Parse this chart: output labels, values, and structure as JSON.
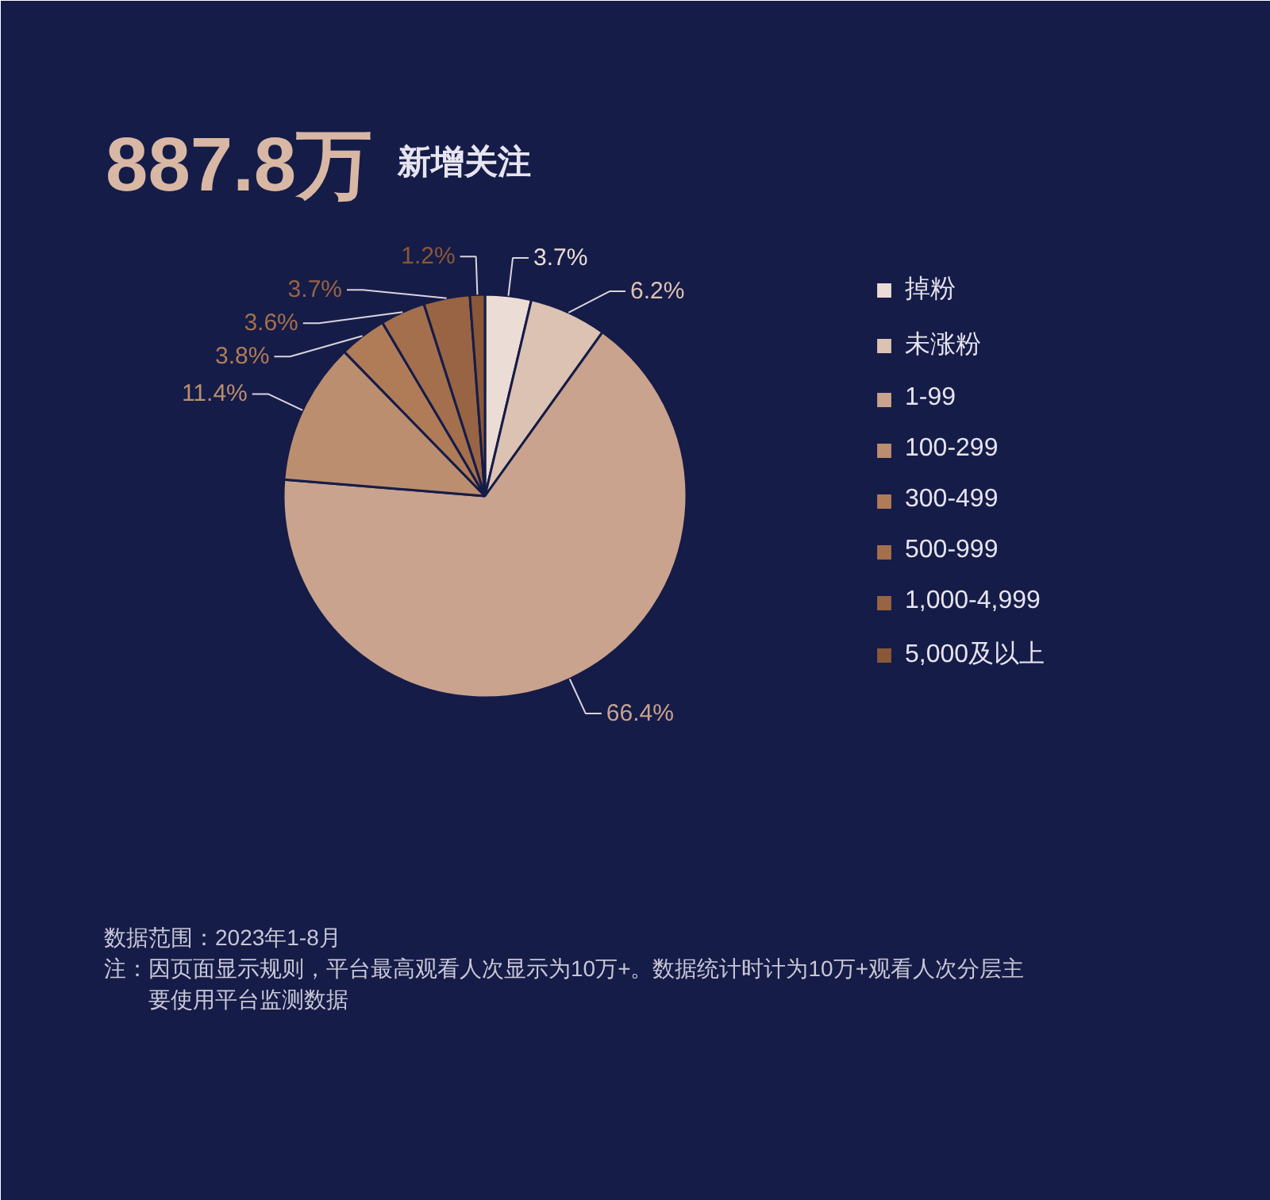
{
  "chart_data": {
    "type": "pie",
    "title": "887.8万",
    "subtitle": "新增关注",
    "categories": [
      "掉粉",
      "未涨粉",
      "1-99",
      "100-299",
      "300-499",
      "500-999",
      "1,000-4,999",
      "5,000及以上"
    ],
    "values": [
      3.7,
      6.2,
      66.4,
      11.4,
      3.8,
      3.6,
      3.7,
      1.2
    ],
    "value_labels": [
      "3.7%",
      "6.2%",
      "66.4%",
      "11.4%",
      "3.8%",
      "3.6%",
      "3.7%",
      "1.2%"
    ],
    "colors": [
      "#ecdcd6",
      "#dcc2b2",
      "#c9a38e",
      "#bb8e70",
      "#b07c58",
      "#a46f4d",
      "#986444",
      "#8a5838"
    ],
    "legend": "right",
    "annotations": [
      "数据范围：2023年1-8月",
      "注：因页面显示规则，平台最高观看人次显示为10万+。数据统计时计为10万+观看人次分层主要使用平台监测数据"
    ]
  }
}
